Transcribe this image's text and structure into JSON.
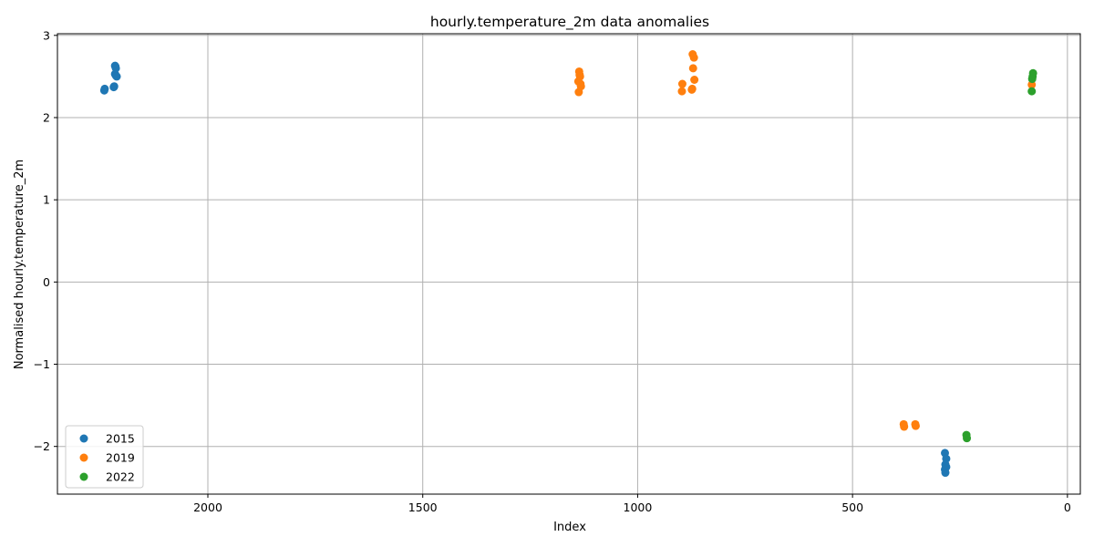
{
  "chart_data": {
    "type": "scatter",
    "title": "hourly.temperature_2m data anomalies",
    "xlabel": "Index",
    "ylabel": "Normalised hourly.temperature_2m",
    "xlim": [
      2350,
      -30
    ],
    "ylim": [
      -2.58,
      3.02
    ],
    "x_inverted": true,
    "x_ticks": [
      2000,
      1500,
      1000,
      500,
      0
    ],
    "x_tick_labels": [
      "2000",
      "1500",
      "1000",
      "500",
      "0"
    ],
    "y_ticks": [
      -2,
      -1,
      0,
      1,
      2,
      3
    ],
    "y_tick_labels": [
      "−2",
      "−1",
      "0",
      "1",
      "2",
      "3"
    ],
    "grid": true,
    "legend_position": "lower-left",
    "series": [
      {
        "name": "2015",
        "color": "#1f77b4",
        "points": [
          [
            2241,
            2.33
          ],
          [
            2240,
            2.35
          ],
          [
            2218,
            2.38
          ],
          [
            2219,
            2.37
          ],
          [
            2216,
            2.53
          ],
          [
            2214,
            2.51
          ],
          [
            2212,
            2.5
          ],
          [
            2216,
            2.63
          ],
          [
            2215,
            2.62
          ],
          [
            2214,
            2.6
          ],
          [
            285,
            -2.08
          ],
          [
            282,
            -2.15
          ],
          [
            284,
            -2.22
          ],
          [
            282,
            -2.25
          ],
          [
            285,
            -2.28
          ],
          [
            284,
            -2.32
          ]
        ]
      },
      {
        "name": "2019",
        "color": "#ff7f0e",
        "points": [
          [
            1136,
            2.56
          ],
          [
            1135,
            2.52
          ],
          [
            1134,
            2.5
          ],
          [
            1138,
            2.44
          ],
          [
            1133,
            2.41
          ],
          [
            1132,
            2.38
          ],
          [
            1137,
            2.31
          ],
          [
            872,
            2.77
          ],
          [
            869,
            2.73
          ],
          [
            871,
            2.6
          ],
          [
            868,
            2.46
          ],
          [
            873,
            2.35
          ],
          [
            874,
            2.34
          ],
          [
            896,
            2.41
          ],
          [
            897,
            2.32
          ],
          [
            381,
            -1.73
          ],
          [
            380,
            -1.76
          ],
          [
            354,
            -1.73
          ],
          [
            353,
            -1.75
          ],
          [
            83,
            2.4
          ]
        ]
      },
      {
        "name": "2022",
        "color": "#2ca02c",
        "points": [
          [
            80,
            2.54
          ],
          [
            81,
            2.5
          ],
          [
            82,
            2.47
          ],
          [
            83,
            2.32
          ],
          [
            235,
            -1.86
          ],
          [
            234,
            -1.9
          ]
        ]
      }
    ]
  }
}
